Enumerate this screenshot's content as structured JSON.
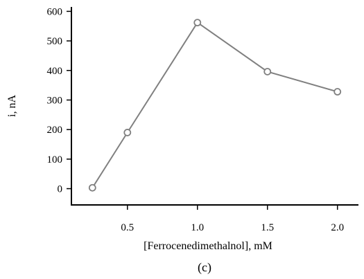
{
  "chart_data": {
    "type": "line",
    "x": [
      0.25,
      0.5,
      1.0,
      1.5,
      2.0
    ],
    "y": [
      3,
      190,
      562,
      396,
      328
    ],
    "xlabel": "[Ferrocenedimethalnol], mM",
    "ylabel": "i, nA",
    "caption": "(c)",
    "xlim": [
      0.1,
      2.15
    ],
    "ylim": [
      -55,
      615
    ],
    "x_ticks": [
      0.5,
      1.0,
      1.5,
      2.0
    ],
    "x_tick_labels": [
      "0.5",
      "1.0",
      "1.5",
      "2.0"
    ],
    "y_ticks": [
      0,
      100,
      200,
      300,
      400,
      500,
      600
    ],
    "y_tick_labels": [
      "0",
      "100",
      "200",
      "300",
      "400",
      "500",
      "600"
    ],
    "grid": false,
    "line_color": "#808080",
    "marker": "open-circle"
  }
}
